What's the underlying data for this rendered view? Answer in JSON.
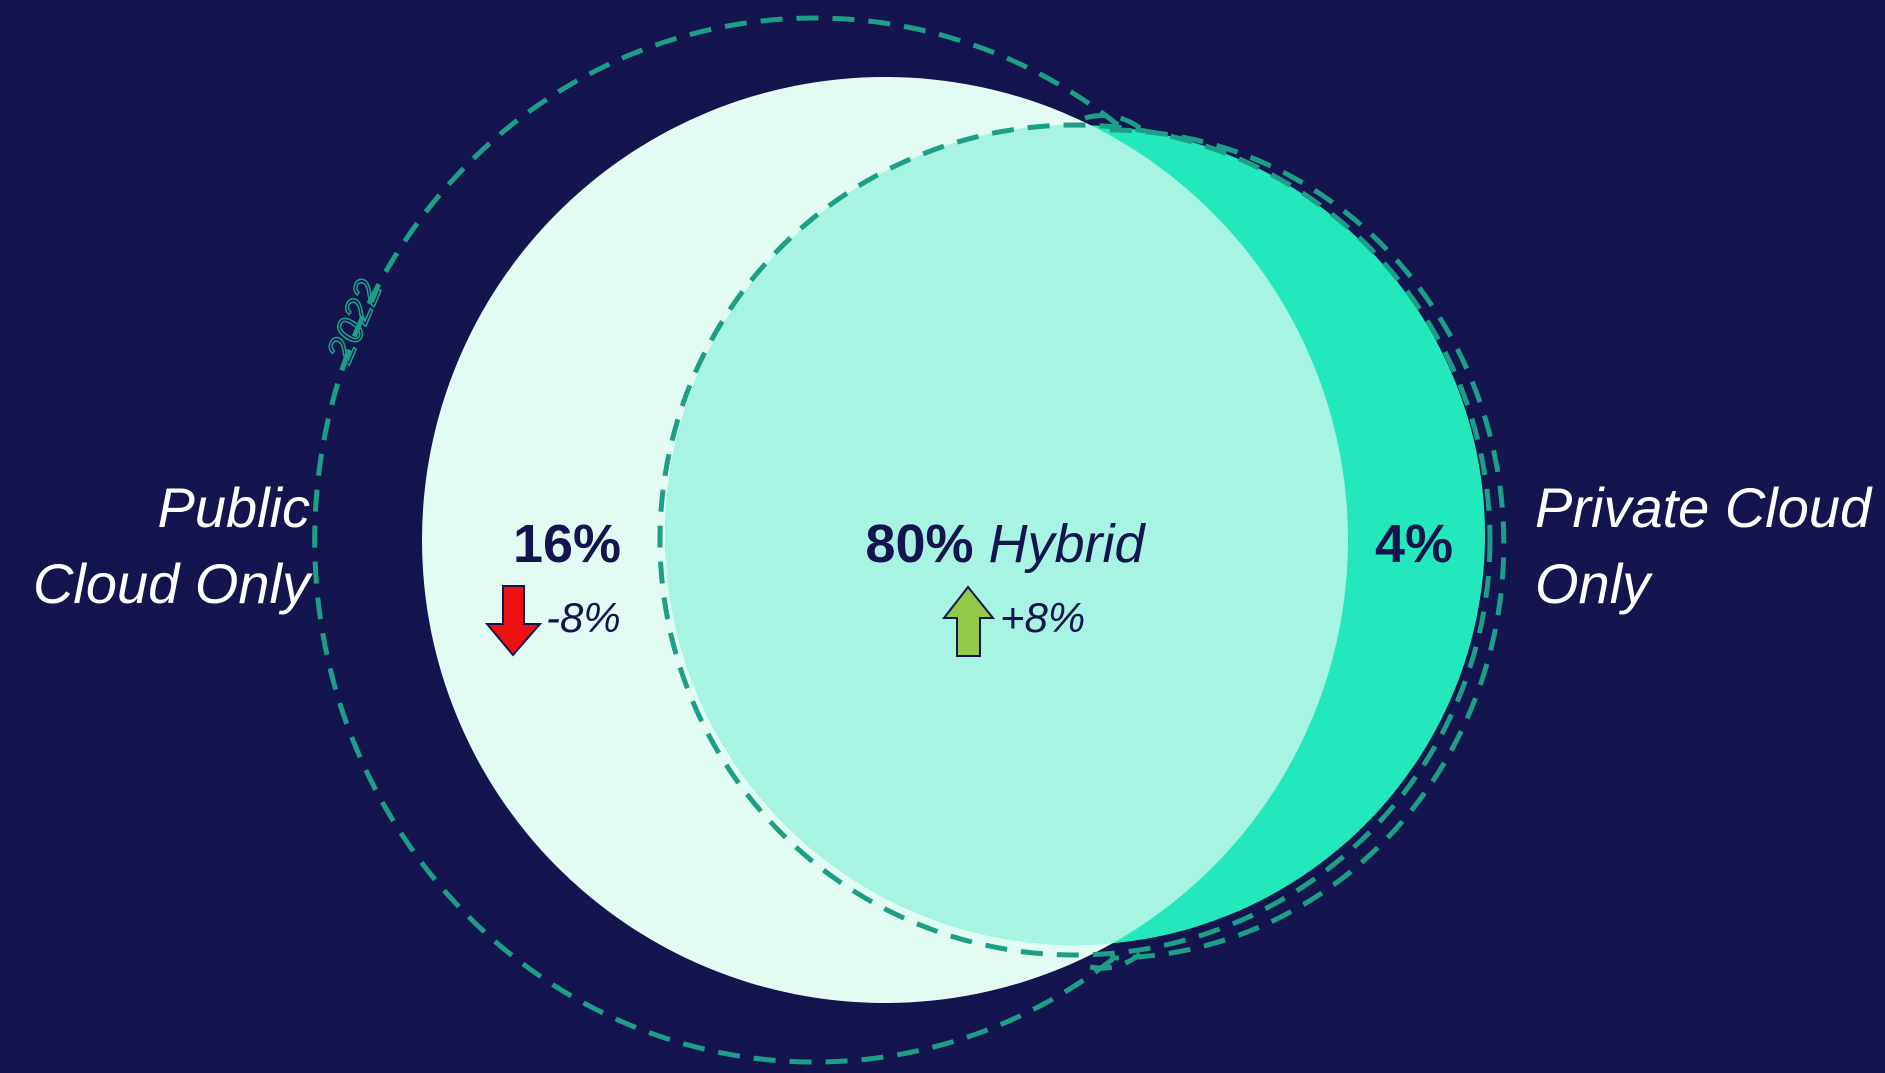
{
  "labels": {
    "public_line1": "Public",
    "public_line2": "Cloud Only",
    "private_line1": "Private Cloud",
    "private_line2": "Only",
    "year": "2022"
  },
  "segments": {
    "public_only": {
      "value": "16%",
      "change": "-8%",
      "direction": "down"
    },
    "hybrid": {
      "value": "80%",
      "name": "Hybrid",
      "change": "+8%",
      "direction": "up"
    },
    "private_only": {
      "value": "4%"
    }
  },
  "colors": {
    "background": "#14144e",
    "public_circle": "#e2fcf4",
    "hybrid_area": "#a8f4e2",
    "private_area": "#22e8bc",
    "dashed_outline": "#1d9e86",
    "text_dark": "#14144e",
    "arrow_down": "#ee1111",
    "arrow_up": "#92c94a"
  },
  "icons": {
    "down_change": "arrow-down-icon",
    "up_change": "arrow-up-icon"
  }
}
